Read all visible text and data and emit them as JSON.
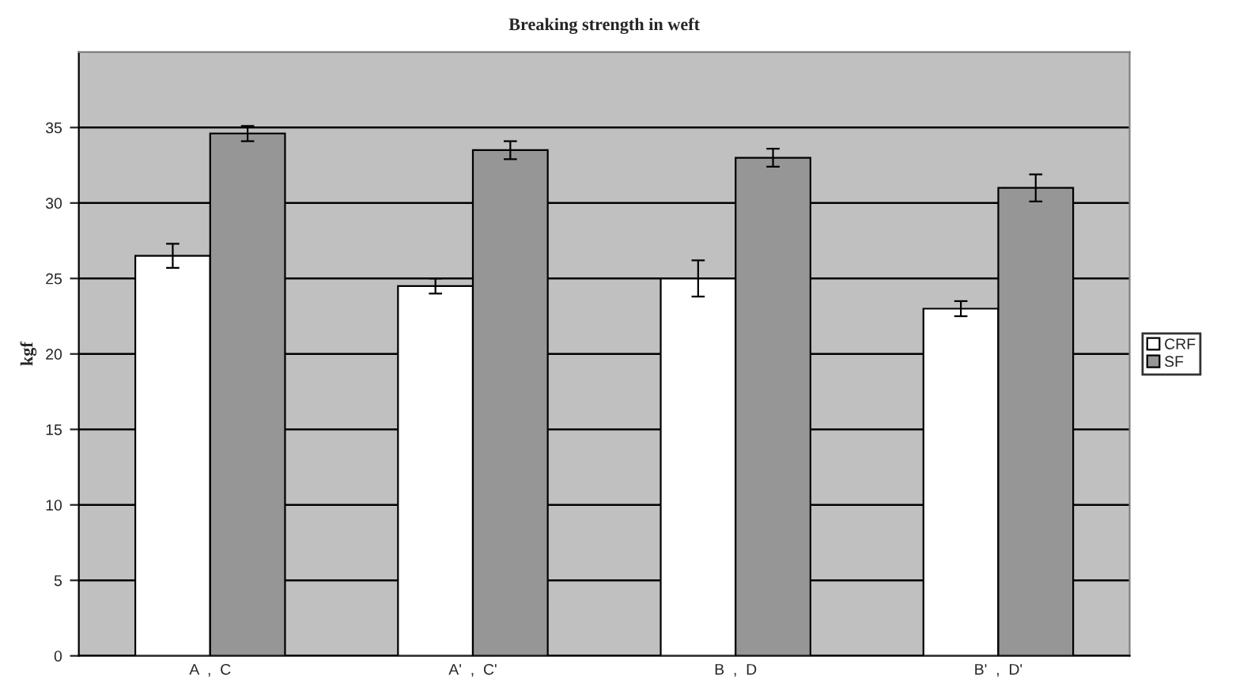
{
  "chart_data": {
    "type": "bar",
    "title": "Breaking strength in weft",
    "ylabel": "kgf",
    "categories": [
      "A  ,  C",
      "A'  ,  C'",
      "B  ,  D",
      "B'  ,  D'"
    ],
    "series": [
      {
        "name": "CRF",
        "color": "#ffffff",
        "values": [
          26.5,
          24.5,
          25,
          23
        ],
        "errors": [
          0.8,
          0.5,
          1.2,
          0.5
        ]
      },
      {
        "name": "SF",
        "color": "#969696",
        "values": [
          34.6,
          33.5,
          33,
          31
        ],
        "errors": [
          0.5,
          0.6,
          0.6,
          0.9
        ]
      }
    ],
    "ylim": [
      0,
      40
    ],
    "yticks": [
      0,
      5,
      10,
      15,
      20,
      25,
      30,
      35
    ],
    "grid": "y",
    "legend": "right"
  }
}
